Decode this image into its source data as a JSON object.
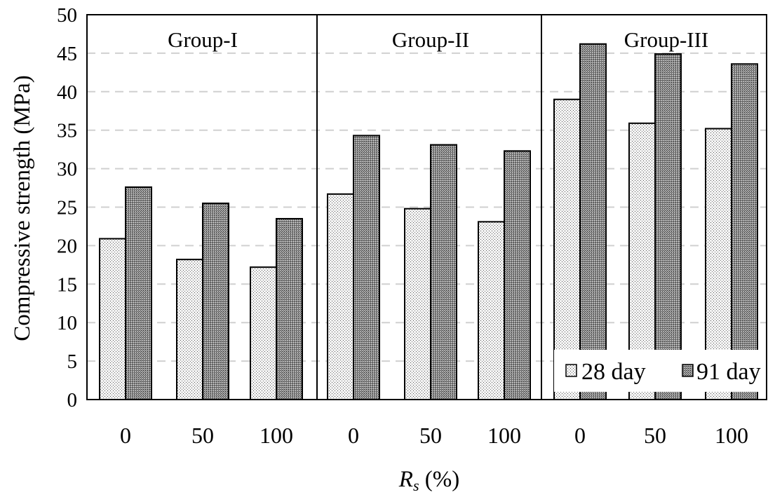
{
  "chart_data": {
    "type": "bar",
    "title": "",
    "xlabel": "Rs (%)",
    "xlabel_main": "R",
    "xlabel_sub": "s",
    "xlabel_rest": " (%)",
    "ylabel": "Compressive  strength  (MPa)",
    "ylim": [
      0,
      50
    ],
    "yticks": [
      0,
      5,
      10,
      15,
      20,
      25,
      30,
      35,
      40,
      45,
      50
    ],
    "grid": true,
    "legend_position": "bottom-right",
    "groups": [
      "Group-I",
      "Group-II",
      "Group-III"
    ],
    "categories": [
      "0",
      "50",
      "100",
      "0",
      "50",
      "100",
      "0",
      "50",
      "100"
    ],
    "series": [
      {
        "name": "28 day",
        "values": [
          20.9,
          18.2,
          17.2,
          26.7,
          24.8,
          23.1,
          39.0,
          35.9,
          35.2
        ]
      },
      {
        "name": "91 day",
        "values": [
          27.6,
          25.5,
          23.5,
          34.3,
          33.1,
          32.3,
          46.2,
          44.9,
          43.6
        ]
      }
    ]
  }
}
